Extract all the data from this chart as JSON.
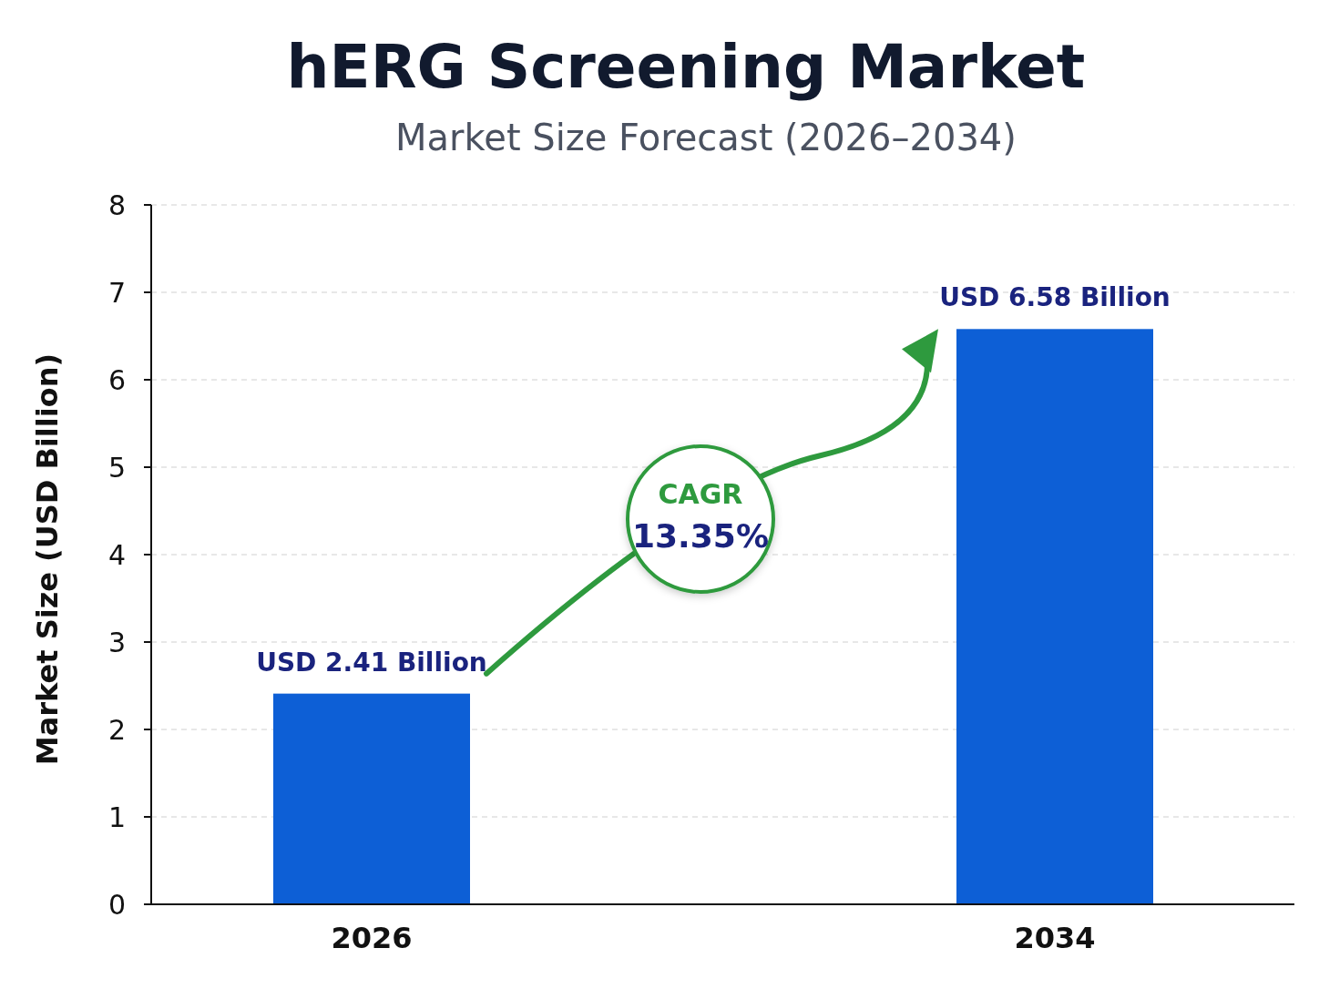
{
  "chart_data": {
    "type": "bar",
    "title": "hERG Screening Market",
    "subtitle": "Market Size Forecast (2026–2034)",
    "ylabel": "Market Size (USD Billion)",
    "categories": [
      "2026",
      "2034"
    ],
    "values": [
      2.41,
      6.58
    ],
    "value_labels": [
      "USD 2.41 Billion",
      "USD 6.58 Billion"
    ],
    "color": "#0d5fd6",
    "ylim": [
      0,
      8
    ],
    "yticks": [
      0,
      1,
      2,
      3,
      4,
      5,
      6,
      7,
      8
    ],
    "grid": "y",
    "annotations": [
      "CAGR",
      "13.35%"
    ]
  }
}
